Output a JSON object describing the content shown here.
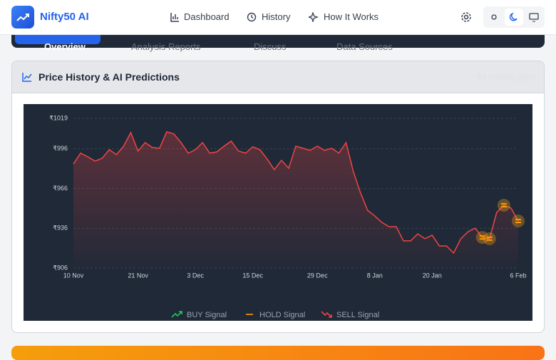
{
  "nav": {
    "brand": "Nifty50 AI",
    "items": [
      "Dashboard",
      "History",
      "How It Works"
    ]
  },
  "tabs": [
    "Overview",
    "Analysis Reports",
    "Discuss",
    "Data Sources"
  ],
  "card": {
    "title": "Price History & AI Predictions",
    "subtitle": "63 trading days"
  },
  "chart_data": {
    "type": "line",
    "color": "#ef4444",
    "grid": true,
    "categories": [
      "10 Nov",
      null,
      null,
      null,
      null,
      null,
      null,
      null,
      null,
      "21 Nov",
      null,
      null,
      null,
      null,
      null,
      null,
      null,
      "3 Dec",
      null,
      null,
      null,
      null,
      null,
      null,
      null,
      "15 Dec",
      null,
      null,
      null,
      null,
      null,
      null,
      null,
      null,
      "29 Dec",
      null,
      null,
      null,
      null,
      null,
      null,
      null,
      "8 Jan",
      null,
      null,
      null,
      null,
      null,
      null,
      null,
      "20 Jan",
      null,
      null,
      null,
      null,
      null,
      null,
      null,
      null,
      null,
      null,
      null,
      "6 Feb"
    ],
    "values": [
      984.6,
      992.7,
      990,
      986.7,
      988.9,
      995.3,
      991.6,
      998,
      1008.3,
      994.3,
      1000.7,
      997,
      996.4,
      1008.8,
      1007.2,
      1000.7,
      992.7,
      995.3,
      1000.7,
      992.7,
      993.7,
      998,
      1001.8,
      994.3,
      992.7,
      997.5,
      995.3,
      988.3,
      980.3,
      987.3,
      981.3,
      998,
      996.4,
      994.8,
      998,
      994.8,
      996.4,
      992.7,
      1000.7,
      979.2,
      963,
      949.6,
      945.3,
      940.4,
      937.2,
      937.2,
      926.5,
      926.5,
      931.8,
      928.1,
      930.8,
      922.7,
      922.7,
      917.3,
      928.1,
      933.4,
      936.1,
      929.1,
      928.1,
      948,
      953.4,
      951.2,
      941.5
    ],
    "ylim": [
      906,
      1019
    ],
    "yticks": [
      {
        "value": 906,
        "label": "₹906"
      },
      {
        "value": 936,
        "label": "₹936"
      },
      {
        "value": 966,
        "label": "₹966"
      },
      {
        "value": 996,
        "label": "₹996"
      },
      {
        "value": 1019,
        "label": "₹1019"
      }
    ],
    "signals": [
      {
        "name": "BUY Signal",
        "color": "#22c55e",
        "values": [
          null,
          null,
          null,
          null,
          null,
          null,
          null,
          null,
          null,
          null,
          null,
          null,
          null,
          null,
          null,
          null,
          null,
          null,
          null,
          null,
          null,
          null,
          null,
          null,
          null,
          null,
          null,
          null,
          null,
          null,
          null,
          null,
          null,
          null,
          null,
          null,
          null,
          null,
          null,
          null,
          null,
          null,
          null,
          null,
          null,
          null,
          null,
          null,
          null,
          null,
          null,
          null,
          null,
          null,
          null,
          null,
          null,
          null,
          null,
          null,
          null,
          null,
          null
        ]
      },
      {
        "name": "HOLD Signal",
        "color": "#f59e0b",
        "values": [
          null,
          null,
          null,
          null,
          null,
          null,
          null,
          null,
          null,
          null,
          null,
          null,
          null,
          null,
          null,
          null,
          null,
          null,
          null,
          null,
          null,
          null,
          null,
          null,
          null,
          null,
          null,
          null,
          null,
          null,
          null,
          null,
          null,
          null,
          null,
          null,
          null,
          null,
          null,
          null,
          null,
          null,
          null,
          null,
          null,
          null,
          null,
          null,
          null,
          null,
          null,
          null,
          null,
          null,
          null,
          null,
          null,
          929.1,
          928.1,
          null,
          953.4,
          null,
          941.5
        ]
      },
      {
        "name": "SELL Signal",
        "color": "#ef4444",
        "values": [
          null,
          null,
          null,
          null,
          null,
          null,
          null,
          null,
          null,
          null,
          null,
          null,
          null,
          null,
          null,
          null,
          null,
          null,
          null,
          null,
          null,
          null,
          null,
          null,
          null,
          null,
          null,
          null,
          null,
          null,
          null,
          null,
          null,
          null,
          null,
          null,
          null,
          null,
          null,
          null,
          null,
          null,
          null,
          null,
          null,
          null,
          null,
          null,
          null,
          null,
          null,
          null,
          null,
          null,
          null,
          null,
          null,
          null,
          null,
          null,
          null,
          null,
          null
        ]
      }
    ]
  }
}
